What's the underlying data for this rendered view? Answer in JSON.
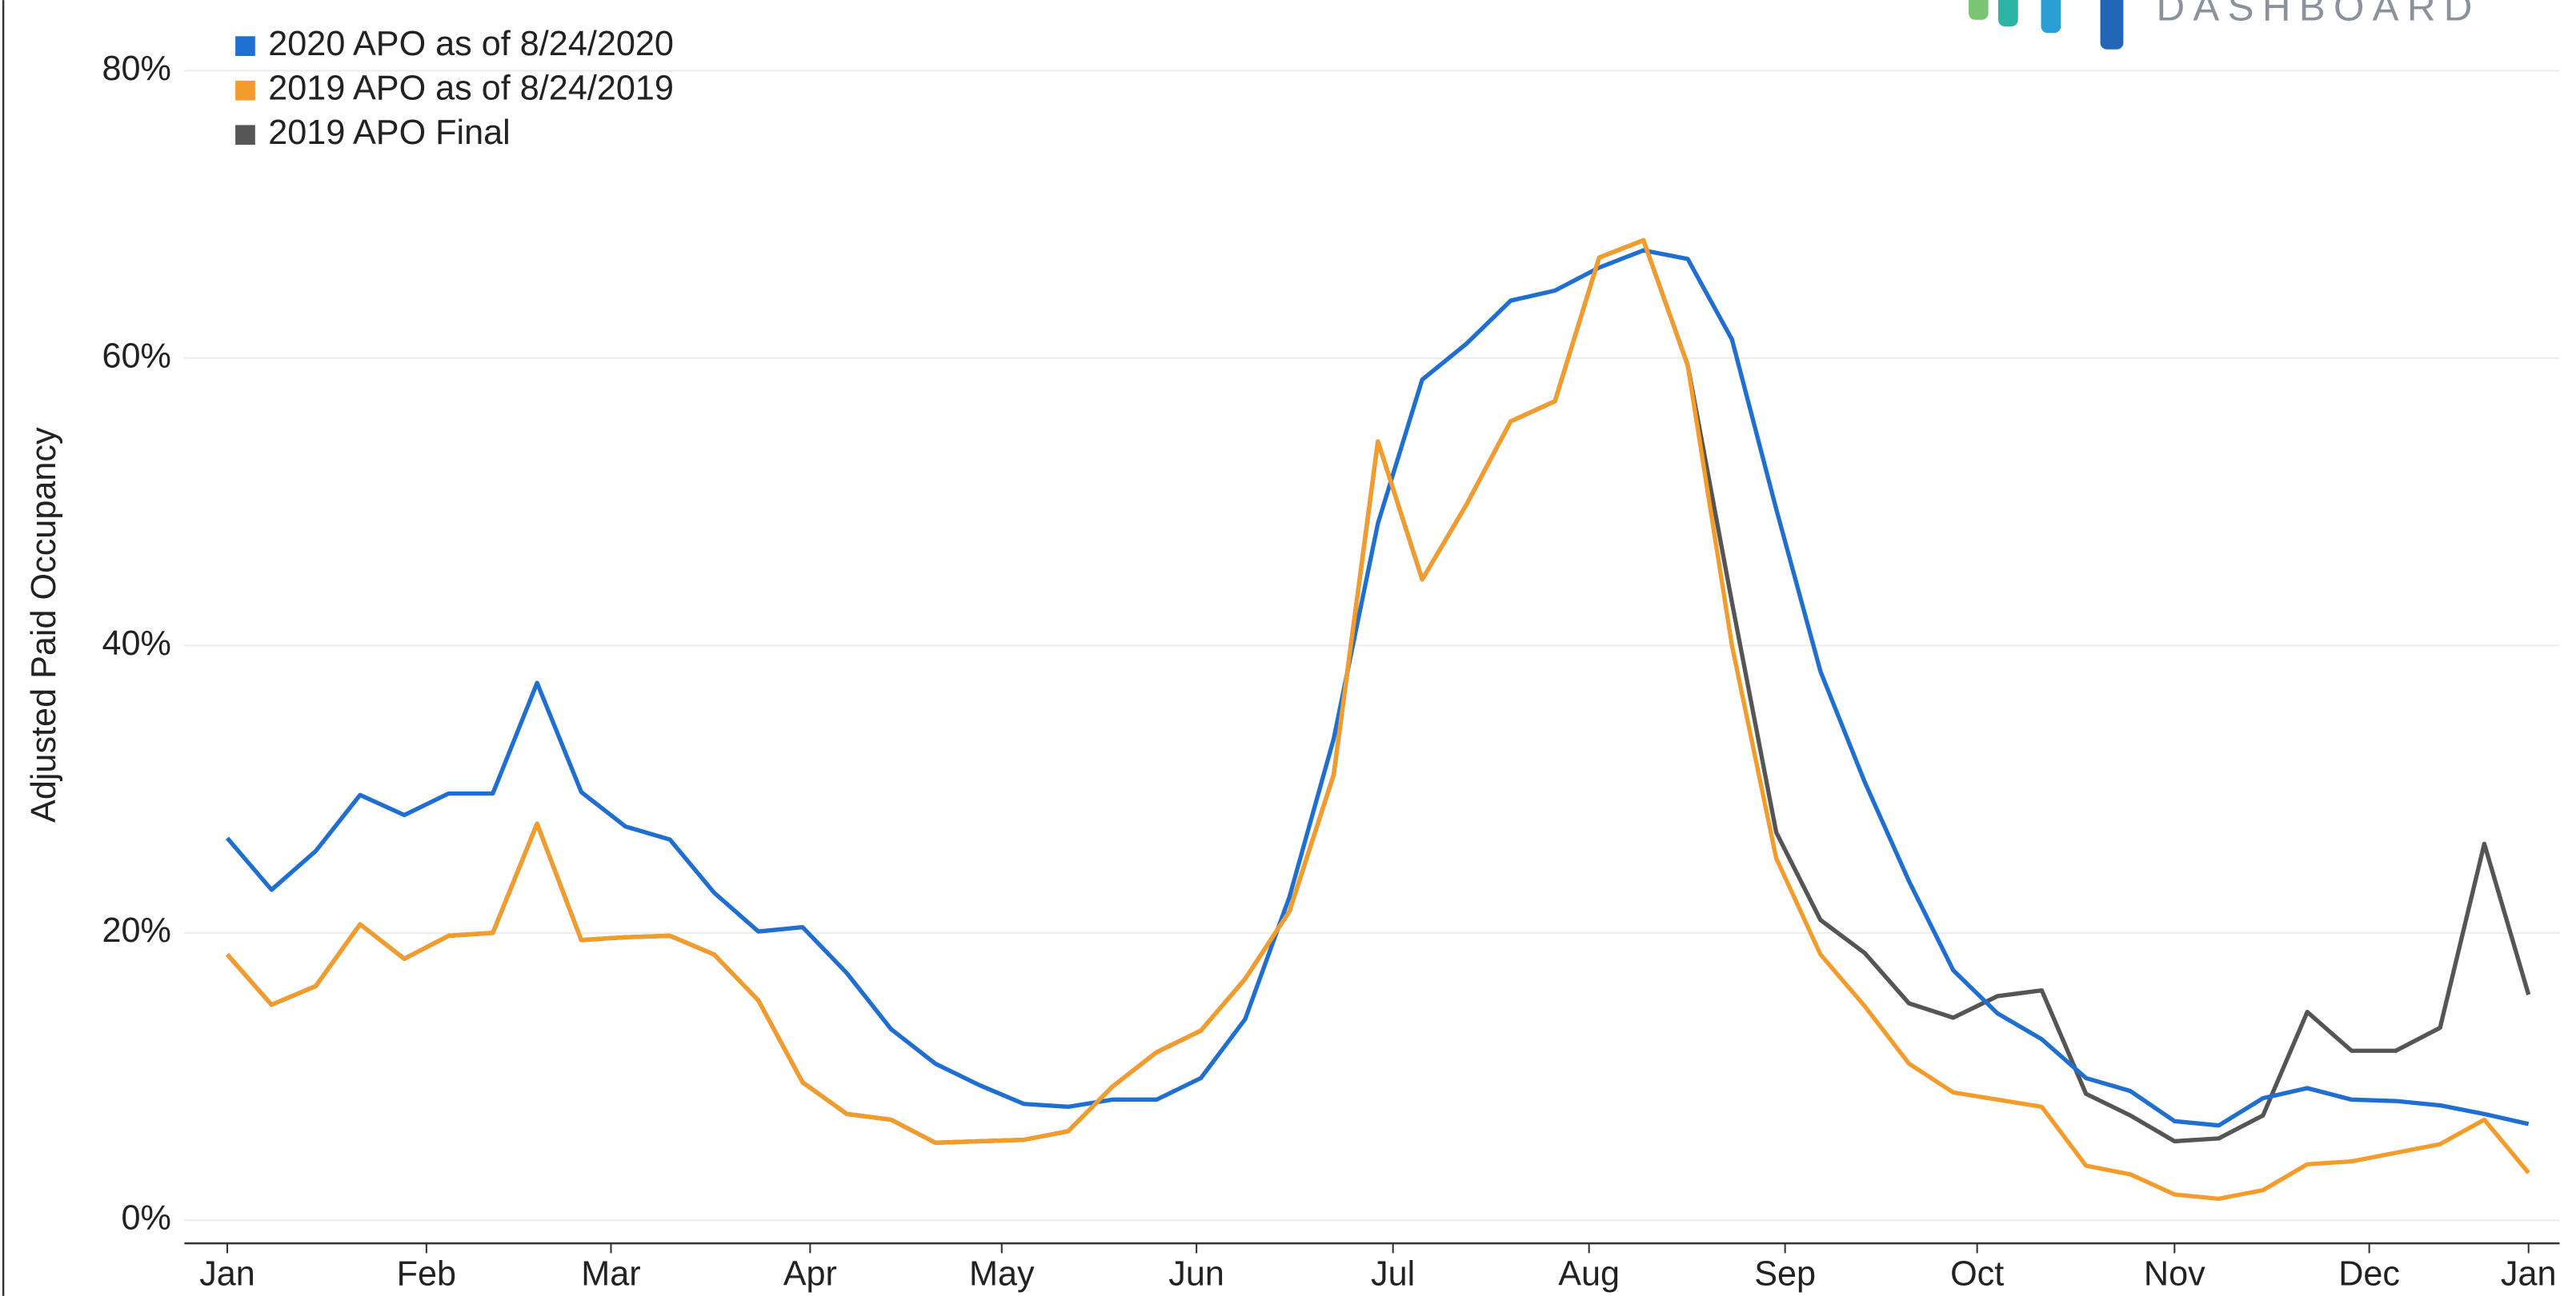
{
  "chart_data": {
    "type": "line",
    "y_label": "Adjusted Paid Occupancy",
    "logo_text": "DASHBOARD",
    "xlim": [
      -0.97,
      52.7
    ],
    "xticks": [
      {
        "value": 0,
        "label": "Jan"
      },
      {
        "value": 4.5,
        "label": "Feb"
      },
      {
        "value": 8.67,
        "label": "Mar"
      },
      {
        "value": 13.17,
        "label": "Apr"
      },
      {
        "value": 17.5,
        "label": "May"
      },
      {
        "value": 21.9,
        "label": "Jun"
      },
      {
        "value": 26.34,
        "label": "Jul"
      },
      {
        "value": 30.77,
        "label": "Aug"
      },
      {
        "value": 35.2,
        "label": "Sep"
      },
      {
        "value": 39.54,
        "label": "Oct"
      },
      {
        "value": 44,
        "label": "Nov"
      },
      {
        "value": 48.4,
        "label": "Dec"
      },
      {
        "value": 52,
        "label": "Jan"
      }
    ],
    "ylim": [
      -1.6,
      84
    ],
    "yticks": [
      {
        "value": 0,
        "label": "0%"
      },
      {
        "value": 20,
        "label": "20%"
      },
      {
        "value": 40,
        "label": "40%"
      },
      {
        "value": 60,
        "label": "60%"
      },
      {
        "value": 80,
        "label": "80%"
      }
    ],
    "grid": true,
    "legend": "top-left",
    "series": [
      {
        "name": "2020 APO as of 8/24/2020",
        "color": "#1f6fd1",
        "values": [
          26.6,
          23,
          25.7,
          29.6,
          28.2,
          29.7,
          29.7,
          37.4,
          29.8,
          27.4,
          26.5,
          22.8,
          20.1,
          20.4,
          17.2,
          13.3,
          10.9,
          9.4,
          8.1,
          7.9,
          8.4,
          8.4,
          9.9,
          14,
          22.5,
          33.5,
          48.5,
          58.5,
          61,
          64,
          64.7,
          66.3,
          67.5,
          66.9,
          61.3,
          49.5,
          38.2,
          30.5,
          23.6,
          17.4,
          14.4,
          12.6,
          9.9,
          9,
          6.9,
          6.6,
          8.5,
          9.2,
          8.4,
          8.3,
          8,
          7.4,
          6.7
        ]
      },
      {
        "name": "2019 APO as of 8/24/2019",
        "color": "#f39c2b",
        "values": [
          18.5,
          15,
          16.3,
          20.6,
          18.2,
          19.8,
          20,
          27.6,
          19.5,
          19.7,
          19.8,
          18.5,
          15.3,
          9.6,
          7.4,
          7,
          5.4,
          5.5,
          5.6,
          6.2,
          9.3,
          11.7,
          13.2,
          16.8,
          21.5,
          31,
          54.2,
          44.6,
          49.8,
          55.6,
          57,
          67,
          68.2,
          59.5,
          40,
          25.2,
          18.5,
          14.9,
          10.9,
          8.9,
          8.4,
          7.9,
          3.8,
          3.2,
          1.8,
          1.5,
          2.1,
          3.9,
          4.1,
          4.7,
          5.3,
          7,
          3.3
        ]
      },
      {
        "name": "2019 APO Final",
        "color": "#555555",
        "values": [
          18.5,
          15,
          16.3,
          20.6,
          18.2,
          19.8,
          20,
          27.6,
          19.5,
          19.7,
          19.8,
          18.5,
          15.3,
          9.6,
          7.4,
          7,
          5.4,
          5.5,
          5.6,
          6.2,
          9.3,
          11.7,
          13.2,
          16.8,
          21.5,
          31,
          54.2,
          44.6,
          49.8,
          55.6,
          57,
          67,
          68.2,
          59.5,
          43,
          27,
          20.9,
          18.6,
          15.1,
          14.1,
          15.6,
          16,
          8.8,
          7.3,
          5.5,
          5.7,
          7.3,
          14.5,
          11.8,
          11.8,
          13.4,
          26.2,
          15.7
        ]
      }
    ]
  }
}
